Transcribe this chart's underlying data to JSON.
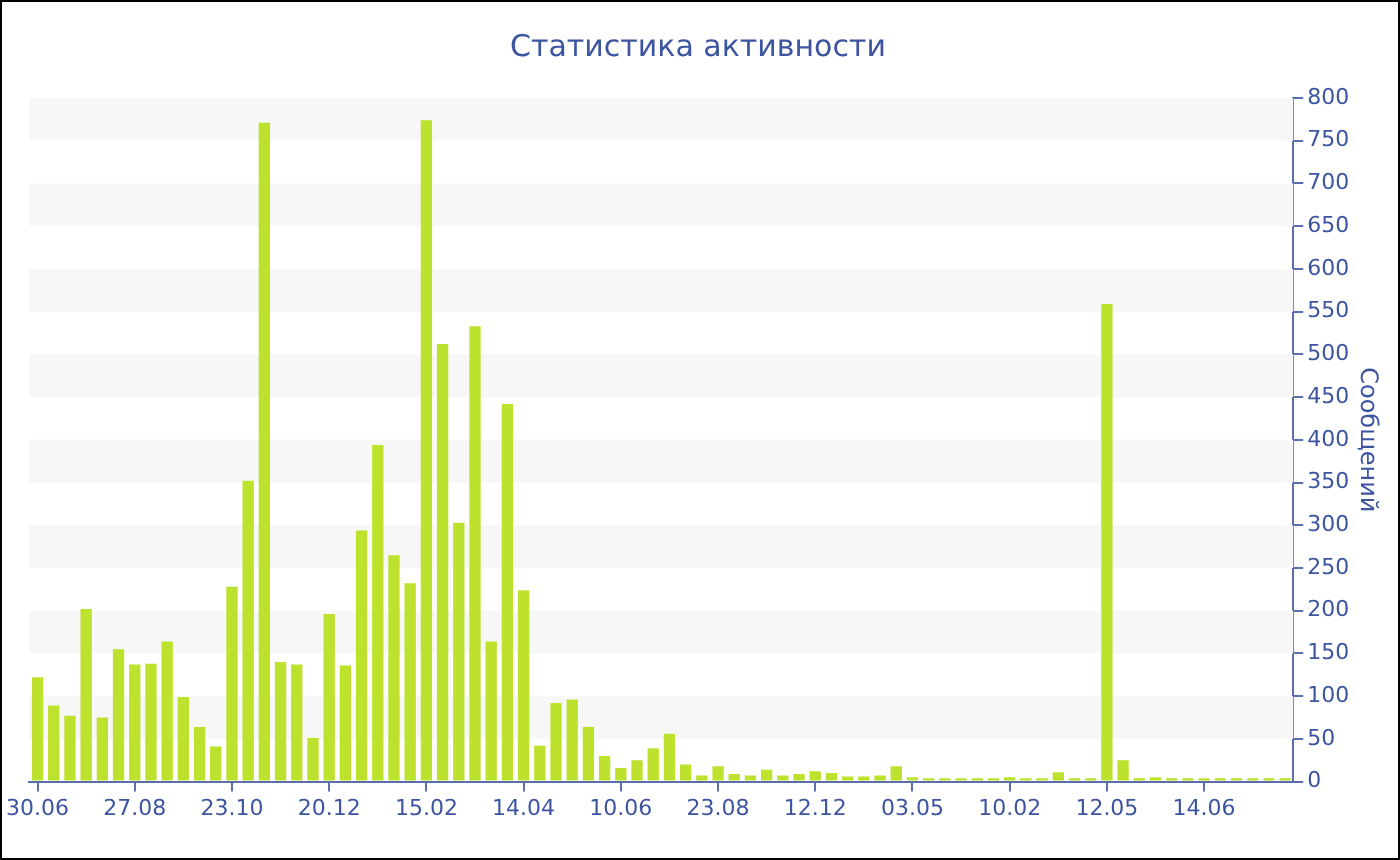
{
  "chart_data": {
    "type": "bar",
    "title": "Статистика активности",
    "ylabel": "Сообщений",
    "categories": [
      "30.06",
      null,
      null,
      null,
      null,
      null,
      "27.08",
      null,
      null,
      null,
      null,
      null,
      "23.10",
      null,
      null,
      null,
      null,
      null,
      "20.12",
      null,
      null,
      null,
      null,
      null,
      "15.02",
      null,
      null,
      null,
      null,
      null,
      "14.04",
      null,
      null,
      null,
      null,
      null,
      "10.06",
      null,
      null,
      null,
      null,
      null,
      "23.08",
      null,
      null,
      null,
      null,
      null,
      "12.12",
      null,
      null,
      null,
      null,
      null,
      "03.05",
      null,
      null,
      null,
      null,
      null,
      "10.02",
      null,
      null,
      null,
      null,
      null,
      "12.05",
      null,
      null,
      null,
      null,
      null,
      "14.06",
      null,
      null,
      null,
      null,
      null
    ],
    "values": [
      122,
      89,
      77,
      202,
      75,
      155,
      137,
      138,
      164,
      99,
      64,
      41,
      228,
      352,
      771,
      140,
      137,
      51,
      196,
      136,
      294,
      394,
      265,
      232,
      774,
      512,
      303,
      533,
      164,
      442,
      224,
      42,
      92,
      96,
      64,
      30,
      16,
      25,
      39,
      56,
      20,
      7,
      18,
      9,
      7,
      14,
      7,
      9,
      12,
      10,
      6,
      6,
      7,
      18,
      5,
      4,
      4,
      4,
      4,
      4,
      5,
      4,
      4,
      11,
      4,
      4,
      559,
      25,
      4,
      5,
      4,
      4,
      4,
      4,
      4,
      4,
      4,
      4
    ],
    "color": "#bde22d",
    "ylim": [
      0,
      800
    ],
    "yticks": [
      0,
      50,
      100,
      150,
      200,
      250,
      300,
      350,
      400,
      450,
      500,
      550,
      600,
      650,
      700,
      750,
      800
    ],
    "bands": [
      {
        "axis": "y",
        "from": 50,
        "to": 100,
        "color": "#f7f7f7"
      },
      {
        "axis": "y",
        "from": 150,
        "to": 200,
        "color": "#f7f7f7"
      },
      {
        "axis": "y",
        "from": 250,
        "to": 300,
        "color": "#f7f7f7"
      },
      {
        "axis": "y",
        "from": 350,
        "to": 400,
        "color": "#f7f7f7"
      },
      {
        "axis": "y",
        "from": 450,
        "to": 500,
        "color": "#f7f7f7"
      },
      {
        "axis": "y",
        "from": 550,
        "to": 600,
        "color": "#f7f7f7"
      },
      {
        "axis": "y",
        "from": 650,
        "to": 700,
        "color": "#f7f7f7"
      },
      {
        "axis": "y",
        "from": 750,
        "to": 800,
        "color": "#f7f7f7"
      }
    ]
  }
}
